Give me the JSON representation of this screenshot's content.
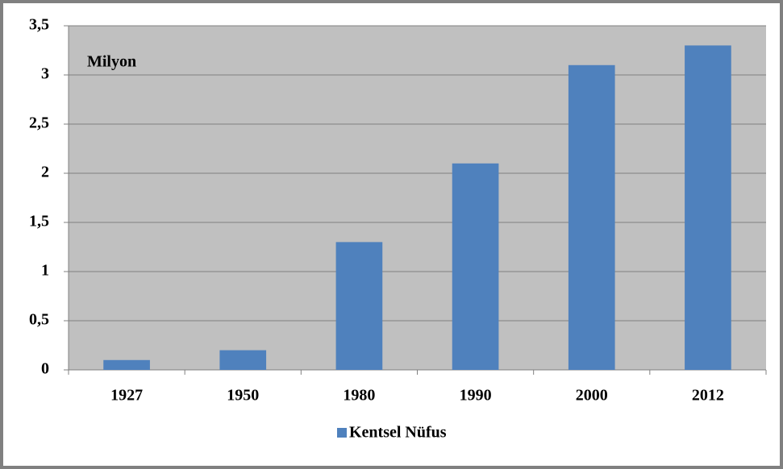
{
  "chart_data": {
    "type": "bar",
    "annotation": "Milyon",
    "categories": [
      "1927",
      "1950",
      "1980",
      "1990",
      "2000",
      "2012"
    ],
    "series": [
      {
        "name": "Kentsel Nüfus",
        "color": "#4f81bd",
        "values": [
          0.1,
          0.2,
          1.3,
          2.1,
          3.1,
          3.3
        ]
      }
    ],
    "ylim": [
      0,
      3.5
    ],
    "yticks": [
      0,
      {
        "value": 0.5,
        "label": "0,5"
      },
      1,
      {
        "value": 1.5,
        "label": "1,5"
      },
      2,
      {
        "value": 2.5,
        "label": "2,5"
      },
      3,
      {
        "value": 3.5,
        "label": "3,5"
      }
    ],
    "grid": true,
    "legend": "bottom"
  }
}
